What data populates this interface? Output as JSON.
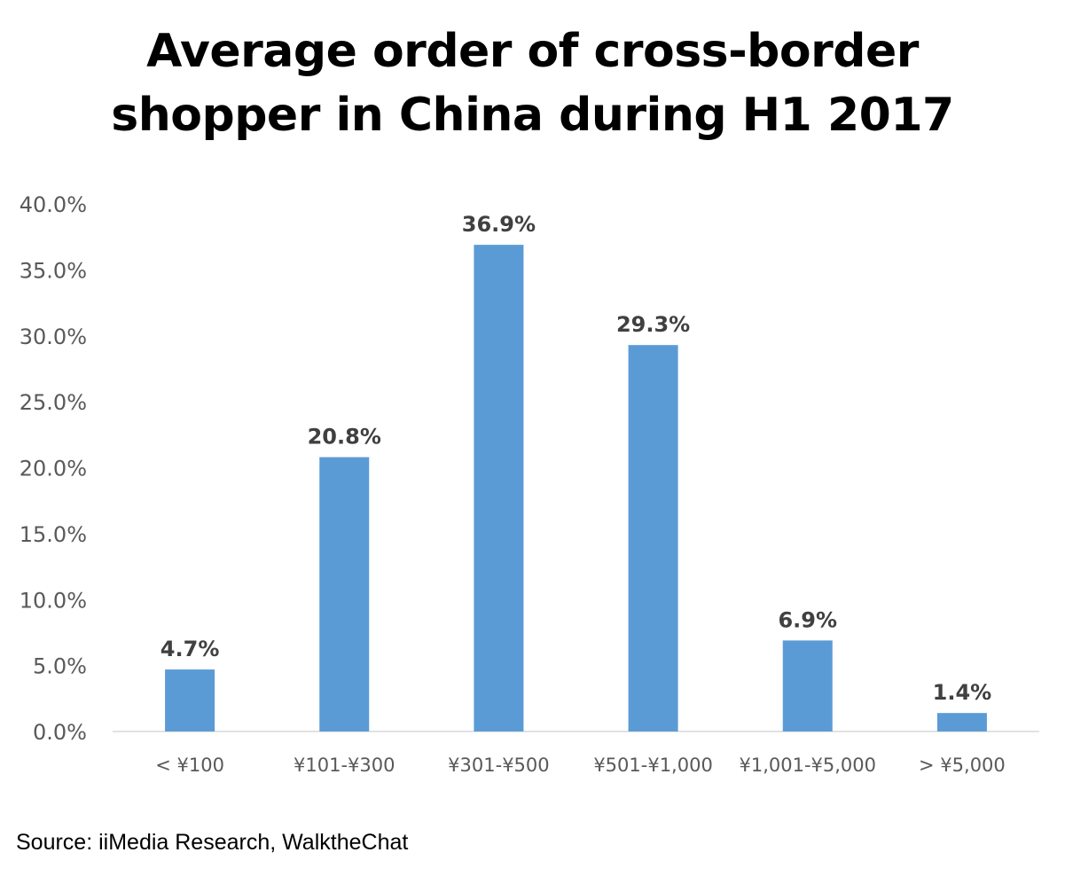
{
  "title_lines": [
    "Average order of cross-border",
    "shopper in China during H1 2017"
  ],
  "source": "Source: iiMedia Research, WalktheChat",
  "colors": {
    "bar": "#5b9bd5",
    "axis": "#d9d9d9",
    "tick_text": "#595959",
    "data_label": "#404040"
  },
  "chart_data": {
    "type": "bar",
    "title": "Average order of cross-border shopper in China during H1 2017",
    "categories": [
      "< ¥100",
      "¥101-¥300",
      "¥301-¥500",
      "¥501-¥1,000",
      "¥1,001-¥5,000",
      "> ¥5,000"
    ],
    "values": [
      4.7,
      20.8,
      36.9,
      29.3,
      6.9,
      1.4
    ],
    "data_labels": [
      "4.7%",
      "20.8%",
      "36.9%",
      "29.3%",
      "6.9%",
      "1.4%"
    ],
    "ylim": [
      0,
      40
    ],
    "yticks": [
      0,
      5,
      10,
      15,
      20,
      25,
      30,
      35,
      40
    ],
    "ytick_labels": [
      "0.0%",
      "5.0%",
      "10.0%",
      "15.0%",
      "20.0%",
      "25.0%",
      "30.0%",
      "35.0%",
      "40.0%"
    ],
    "xlabel": "",
    "ylabel": "",
    "grid": false,
    "legend": "none"
  }
}
